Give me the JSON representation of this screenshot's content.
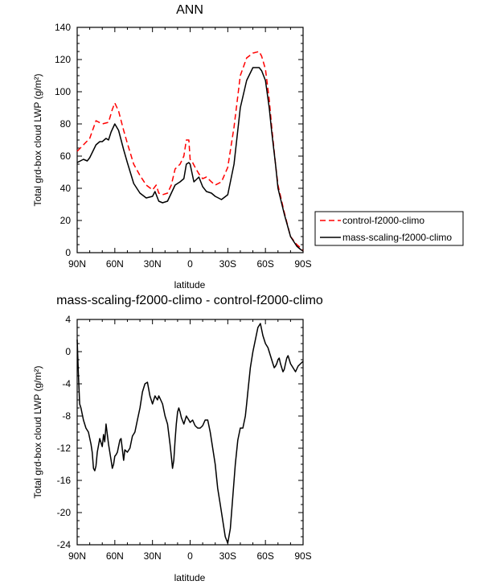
{
  "chart_data": [
    {
      "type": "line",
      "title": "ANN",
      "xlabel": "latitude",
      "ylabel": "Total grd-box cloud LWP (g/m²)",
      "xlim": [
        90,
        -90
      ],
      "ylim": [
        0,
        140
      ],
      "xticks": [
        90,
        60,
        30,
        0,
        -30,
        -60,
        -90
      ],
      "xtick_labels": [
        "90N",
        "60N",
        "30N",
        "0",
        "30S",
        "60S",
        "90S"
      ],
      "yticks": [
        0,
        20,
        40,
        60,
        80,
        100,
        120,
        140
      ],
      "ytick_labels": [
        "0",
        "20",
        "40",
        "60",
        "80",
        "100",
        "120",
        "140"
      ],
      "legend_position": "outside-right",
      "series": [
        {
          "name": "control-f2000-climo",
          "color": "#ff0000",
          "dash": "dashed",
          "x": [
            90,
            85,
            80,
            75,
            70,
            65,
            62,
            60,
            57,
            53,
            50,
            45,
            40,
            35,
            30,
            27,
            25,
            22,
            18,
            15,
            12,
            8,
            5,
            3,
            1,
            0,
            -2,
            -4,
            -7,
            -10,
            -13,
            -17,
            -20,
            -25,
            -30,
            -35,
            -40,
            -45,
            -50,
            -55,
            -57,
            -60,
            -63,
            -65,
            -68,
            -70,
            -75,
            -80,
            -85,
            -88,
            -90
          ],
          "y": [
            63,
            67,
            71,
            82,
            80,
            81,
            89,
            93,
            88,
            76,
            68,
            55,
            48,
            42,
            39,
            42,
            37,
            36,
            37,
            42,
            52,
            55,
            60,
            70,
            70,
            58,
            56,
            53,
            49,
            46,
            47,
            44,
            42,
            44,
            53,
            78,
            110,
            121,
            124,
            125,
            122,
            114,
            95,
            78,
            55,
            42,
            25,
            10,
            5,
            3,
            1
          ]
        },
        {
          "name": "mass-scaling-f2000-climo",
          "color": "#000000",
          "dash": "solid",
          "x": [
            90,
            85,
            82,
            80,
            75,
            72,
            70,
            67,
            65,
            63,
            60,
            57,
            53,
            50,
            45,
            40,
            35,
            30,
            28,
            25,
            22,
            18,
            15,
            12,
            8,
            5,
            3,
            1,
            0,
            -3,
            -7,
            -10,
            -13,
            -17,
            -20,
            -25,
            -30,
            -35,
            -40,
            -45,
            -50,
            -55,
            -57,
            -60,
            -63,
            -65,
            -68,
            -70,
            -75,
            -80,
            -85,
            -88,
            -90
          ],
          "y": [
            56,
            58,
            57,
            59,
            67,
            69,
            69,
            71,
            70,
            75,
            80,
            76,
            64,
            56,
            43,
            37,
            34,
            35,
            38,
            32,
            31,
            32,
            37,
            42,
            44,
            46,
            55,
            56,
            55,
            44,
            47,
            41,
            38,
            37,
            35,
            33,
            36,
            55,
            90,
            107,
            115,
            115,
            113,
            107,
            90,
            75,
            55,
            40,
            24,
            10,
            4,
            2,
            1
          ]
        }
      ]
    },
    {
      "type": "line",
      "title": "mass-scaling-f2000-climo - control-f2000-climo",
      "xlabel": "latitude",
      "ylabel": "Total grd-box cloud LWP (g/m²)",
      "xlim": [
        90,
        -90
      ],
      "ylim": [
        -24,
        4
      ],
      "xticks": [
        90,
        60,
        30,
        0,
        -30,
        -60,
        -90
      ],
      "xtick_labels": [
        "90N",
        "60N",
        "30N",
        "0",
        "30S",
        "60S",
        "90S"
      ],
      "yticks": [
        -24,
        -20,
        -16,
        -12,
        -8,
        -4,
        0,
        4
      ],
      "ytick_labels": [
        "-24",
        "-20",
        "-16",
        "-12",
        "-8",
        "-4",
        "0",
        "4"
      ],
      "series": [
        {
          "name": "",
          "color": "#000000",
          "dash": "solid",
          "x": [
            90,
            89,
            88,
            87,
            85,
            83,
            81,
            79,
            78,
            77,
            76,
            75,
            74,
            72,
            70,
            69,
            68,
            67,
            65,
            63,
            62,
            61,
            60,
            59,
            58,
            56,
            55,
            53,
            52,
            50,
            48,
            46,
            44,
            42,
            40,
            38,
            36,
            34,
            32,
            30,
            28,
            26,
            25,
            24,
            22,
            20,
            18,
            16,
            15,
            14,
            13,
            12,
            11,
            10,
            9,
            8,
            7,
            5,
            3,
            1,
            0,
            -2,
            -4,
            -6,
            -8,
            -10,
            -12,
            -14,
            -16,
            -18,
            -20,
            -22,
            -24,
            -26,
            -28,
            -30,
            -32,
            -34,
            -36,
            -38,
            -40,
            -42,
            -44,
            -45,
            -46,
            -48,
            -50,
            -52,
            -54,
            -56,
            -58,
            -60,
            -62,
            -64,
            -66,
            -67,
            -68,
            -69,
            -70,
            -71,
            -72,
            -74,
            -75,
            -76,
            -77,
            -78,
            -80,
            -82,
            -84,
            -86,
            -88,
            -90
          ],
          "y": [
            1.5,
            -3,
            -6.5,
            -7,
            -8.5,
            -9.5,
            -10,
            -11.5,
            -12.5,
            -14.5,
            -14.8,
            -14.2,
            -12.5,
            -10.8,
            -11.8,
            -10.3,
            -11.2,
            -9,
            -11.5,
            -13.5,
            -14.5,
            -14,
            -13,
            -12.8,
            -12.5,
            -11,
            -10.8,
            -13.5,
            -12.2,
            -12.5,
            -12,
            -10.5,
            -10,
            -8.5,
            -7,
            -5,
            -4,
            -3.8,
            -5.5,
            -6.5,
            -5.5,
            -6,
            -5.5,
            -5.8,
            -6.5,
            -8,
            -9,
            -11.5,
            -13,
            -14.5,
            -13.5,
            -11,
            -9,
            -7.5,
            -7,
            -7.5,
            -8.2,
            -9,
            -8,
            -8.5,
            -8.8,
            -8.5,
            -9.2,
            -9.5,
            -9.5,
            -9.2,
            -8.5,
            -8.5,
            -10,
            -12,
            -14,
            -17,
            -19,
            -21,
            -23,
            -23.8,
            -22,
            -18,
            -14,
            -11,
            -9.5,
            -9.5,
            -8,
            -6.5,
            -5,
            -2,
            0,
            1.5,
            3,
            3.5,
            2,
            1,
            0.5,
            -0.5,
            -1.5,
            -2,
            -1.8,
            -1.5,
            -1,
            -0.8,
            -1.5,
            -2.5,
            -2.2,
            -1.5,
            -0.8,
            -0.5,
            -1.5,
            -2,
            -2.5,
            -1.8,
            -1.5,
            -1.2
          ]
        }
      ]
    }
  ],
  "legend": {
    "items": [
      {
        "label": "control-f2000-climo",
        "color": "#ff0000",
        "dash": "dashed"
      },
      {
        "label": "mass-scaling-f2000-climo",
        "color": "#000000",
        "dash": "solid"
      }
    ]
  }
}
